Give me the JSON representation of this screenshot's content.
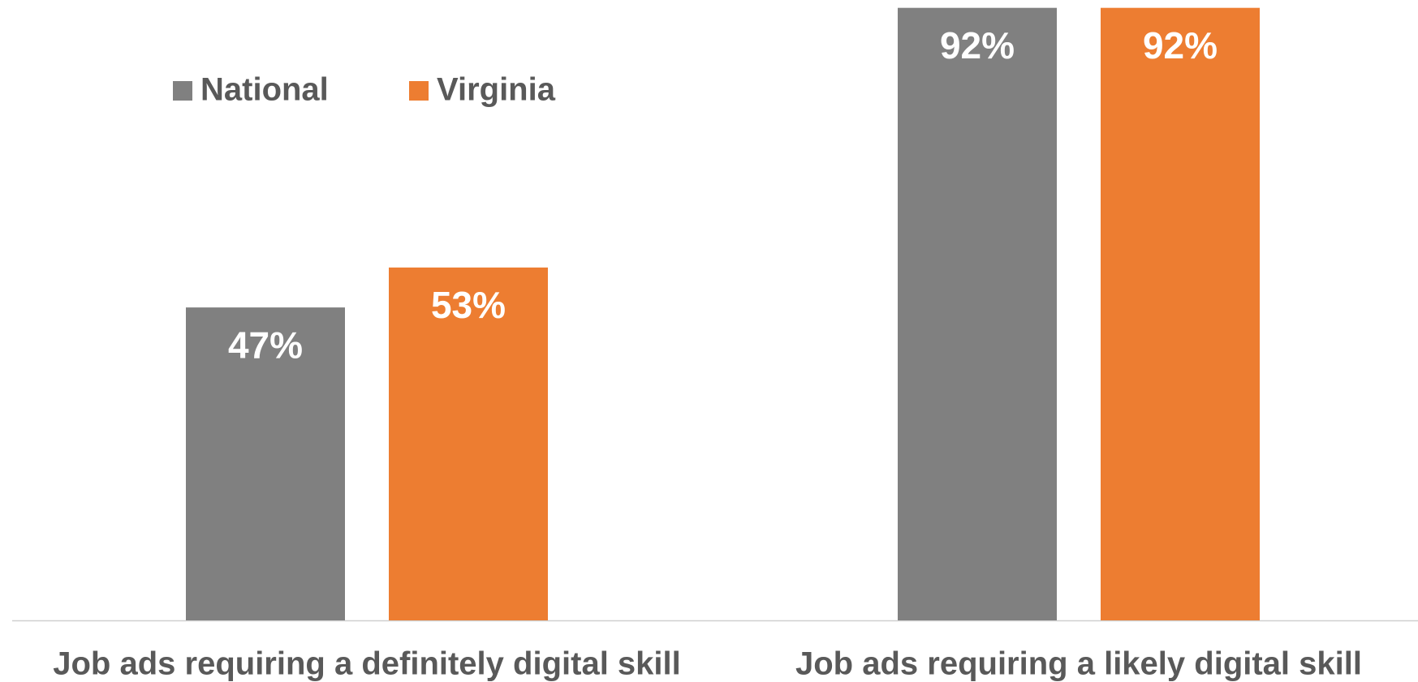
{
  "chart_data": {
    "type": "bar",
    "categories": [
      "Job ads requiring a definitely digital skill",
      "Job ads requiring a likely digital skill"
    ],
    "series": [
      {
        "name": "National",
        "color": "#808080",
        "values": [
          47,
          92
        ],
        "value_labels": [
          "47%",
          "92%"
        ]
      },
      {
        "name": "Virginia",
        "color": "#ED7D31",
        "values": [
          53,
          92
        ],
        "value_labels": [
          "53%",
          "92%"
        ]
      }
    ],
    "ylim": [
      0,
      100
    ],
    "legend": "top-left"
  }
}
